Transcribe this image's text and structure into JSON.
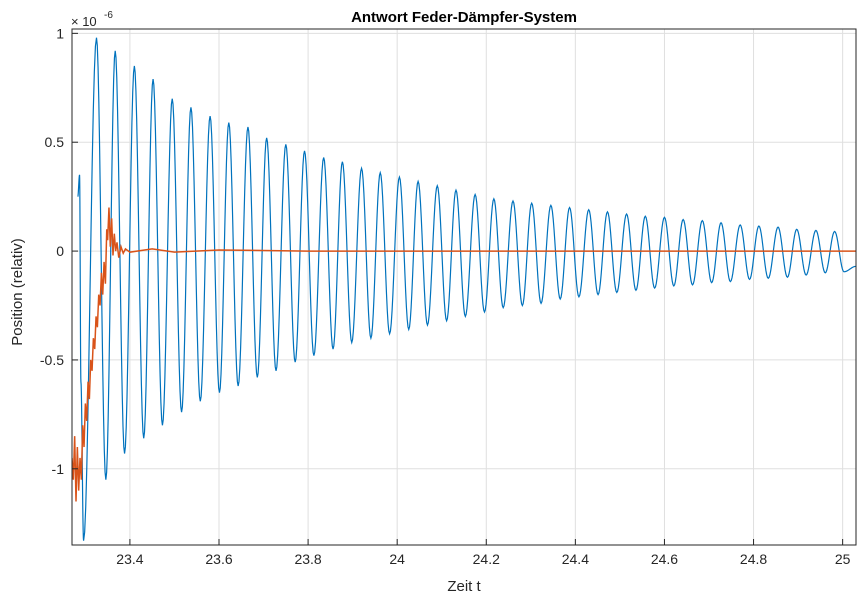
{
  "chart_data": {
    "type": "line",
    "title": "Antwort Feder-Dämpfer-System",
    "xlabel": "Zeit t",
    "ylabel": "Position (relativ)",
    "y_exponent_prefix": "× 10",
    "y_exponent_power": "-6",
    "xlim": [
      23.27,
      25.03
    ],
    "ylim": [
      -1.35,
      1.02
    ],
    "xticks": [
      23.4,
      23.6,
      23.8,
      24,
      24.2,
      24.4,
      24.6,
      24.8,
      25
    ],
    "xtick_labels": [
      "23.4",
      "23.6",
      "23.8",
      "24",
      "24.2",
      "24.4",
      "24.6",
      "24.8",
      "25"
    ],
    "yticks": [
      1,
      0.5,
      0,
      -0.5,
      -1
    ],
    "ytick_labels": [
      "1",
      "0.5",
      "0",
      "-0.5",
      "-1"
    ],
    "grid": true,
    "colors": {
      "blue": "#0072BD",
      "orange": "#D95319",
      "grid": "#dfdfdf",
      "axis": "#262626"
    },
    "series": [
      {
        "color": "#0072BD",
        "description": "Lightly damped oscillation, period ≈ 0.0425",
        "peaks": [
          [
            23.283,
            0.25
          ],
          [
            23.287,
            0.35
          ],
          [
            23.325,
            0.98
          ],
          [
            23.367,
            0.92
          ],
          [
            23.41,
            0.85
          ],
          [
            23.452,
            0.79
          ],
          [
            23.495,
            0.7
          ],
          [
            23.537,
            0.66
          ],
          [
            23.58,
            0.62
          ],
          [
            23.622,
            0.59
          ],
          [
            23.665,
            0.57
          ],
          [
            23.707,
            0.52
          ],
          [
            23.75,
            0.49
          ],
          [
            23.792,
            0.46
          ],
          [
            23.835,
            0.43
          ],
          [
            23.877,
            0.41
          ],
          [
            23.92,
            0.38
          ],
          [
            23.962,
            0.36
          ],
          [
            24.005,
            0.34
          ],
          [
            24.047,
            0.32
          ],
          [
            24.09,
            0.3
          ],
          [
            24.132,
            0.28
          ],
          [
            24.175,
            0.26
          ],
          [
            24.217,
            0.24
          ],
          [
            24.26,
            0.23
          ],
          [
            24.302,
            0.22
          ],
          [
            24.345,
            0.21
          ],
          [
            24.387,
            0.2
          ],
          [
            24.43,
            0.19
          ],
          [
            24.472,
            0.18
          ],
          [
            24.515,
            0.17
          ],
          [
            24.557,
            0.16
          ],
          [
            24.6,
            0.155
          ],
          [
            24.642,
            0.145
          ],
          [
            24.685,
            0.14
          ],
          [
            24.727,
            0.13
          ],
          [
            24.77,
            0.12
          ],
          [
            24.812,
            0.115
          ],
          [
            24.855,
            0.11
          ],
          [
            24.897,
            0.1
          ],
          [
            24.94,
            0.095
          ],
          [
            24.982,
            0.09
          ]
        ],
        "troughs": [
          [
            23.29,
            -0.6
          ],
          [
            23.296,
            -1.33
          ],
          [
            23.346,
            -1.05
          ],
          [
            23.388,
            -0.93
          ],
          [
            23.431,
            -0.86
          ],
          [
            23.473,
            -0.8
          ],
          [
            23.516,
            -0.74
          ],
          [
            23.558,
            -0.69
          ],
          [
            23.601,
            -0.65
          ],
          [
            23.643,
            -0.62
          ],
          [
            23.686,
            -0.58
          ],
          [
            23.728,
            -0.55
          ],
          [
            23.771,
            -0.51
          ],
          [
            23.813,
            -0.48
          ],
          [
            23.856,
            -0.45
          ],
          [
            23.898,
            -0.42
          ],
          [
            23.941,
            -0.4
          ],
          [
            23.983,
            -0.38
          ],
          [
            24.026,
            -0.36
          ],
          [
            24.068,
            -0.34
          ],
          [
            24.111,
            -0.32
          ],
          [
            24.153,
            -0.3
          ],
          [
            24.196,
            -0.28
          ],
          [
            24.238,
            -0.26
          ],
          [
            24.281,
            -0.25
          ],
          [
            24.323,
            -0.24
          ],
          [
            24.366,
            -0.22
          ],
          [
            24.408,
            -0.21
          ],
          [
            24.451,
            -0.2
          ],
          [
            24.493,
            -0.19
          ],
          [
            24.536,
            -0.18
          ],
          [
            24.578,
            -0.17
          ],
          [
            24.621,
            -0.16
          ],
          [
            24.663,
            -0.155
          ],
          [
            24.706,
            -0.145
          ],
          [
            24.748,
            -0.14
          ],
          [
            24.791,
            -0.13
          ],
          [
            24.833,
            -0.125
          ],
          [
            24.876,
            -0.12
          ],
          [
            24.918,
            -0.11
          ],
          [
            24.961,
            -0.1
          ],
          [
            25.003,
            -0.095
          ],
          [
            25.03,
            -0.07
          ]
        ]
      },
      {
        "color": "#D95319",
        "description": "Noisy transient settling to ≈0 by t ≈ 23.38",
        "points": [
          [
            23.27,
            -0.95
          ],
          [
            23.273,
            -1.05
          ],
          [
            23.276,
            -0.85
          ],
          [
            23.279,
            -1.15
          ],
          [
            23.282,
            -0.9
          ],
          [
            23.285,
            -1.1
          ],
          [
            23.288,
            -0.95
          ],
          [
            23.291,
            -1.05
          ],
          [
            23.294,
            -0.8
          ],
          [
            23.297,
            -0.9
          ],
          [
            23.3,
            -0.7
          ],
          [
            23.303,
            -0.78
          ],
          [
            23.306,
            -0.6
          ],
          [
            23.309,
            -0.68
          ],
          [
            23.312,
            -0.5
          ],
          [
            23.315,
            -0.55
          ],
          [
            23.318,
            -0.4
          ],
          [
            23.321,
            -0.45
          ],
          [
            23.324,
            -0.3
          ],
          [
            23.327,
            -0.35
          ],
          [
            23.33,
            -0.2
          ],
          [
            23.333,
            -0.25
          ],
          [
            23.336,
            -0.1
          ],
          [
            23.339,
            -0.2
          ],
          [
            23.342,
            -0.05
          ],
          [
            23.345,
            -0.15
          ],
          [
            23.348,
            0.1
          ],
          [
            23.35,
            0.05
          ],
          [
            23.353,
            0.2
          ],
          [
            23.356,
            0.02
          ],
          [
            23.359,
            0.15
          ],
          [
            23.362,
            -0.02
          ],
          [
            23.365,
            0.08
          ],
          [
            23.368,
            0.0
          ],
          [
            23.371,
            0.04
          ],
          [
            23.375,
            -0.03
          ],
          [
            23.38,
            0.02
          ],
          [
            23.385,
            -0.01
          ],
          [
            23.39,
            0.01
          ],
          [
            23.4,
            -0.005
          ],
          [
            23.45,
            0.01
          ],
          [
            23.5,
            -0.005
          ],
          [
            23.6,
            0.005
          ],
          [
            23.8,
            0.0
          ],
          [
            24.2,
            0.0
          ],
          [
            25.03,
            0.0
          ]
        ]
      }
    ]
  }
}
